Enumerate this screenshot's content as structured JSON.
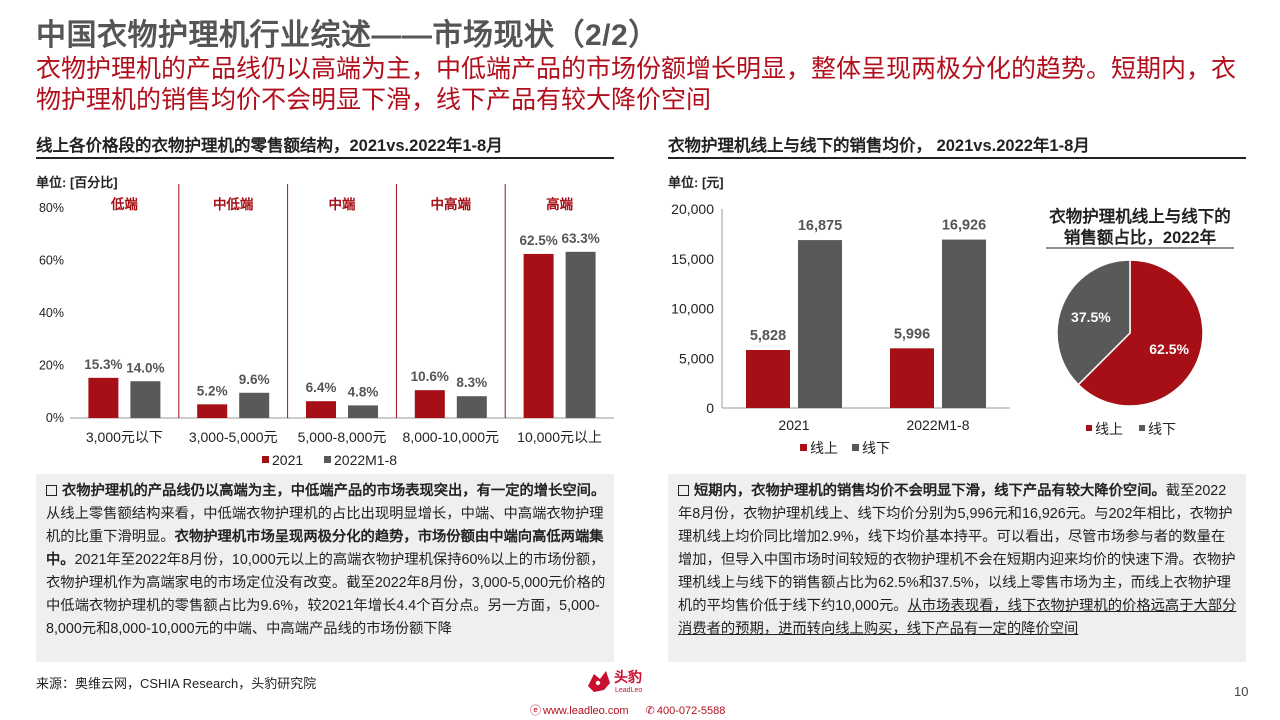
{
  "title": "中国衣物护理机行业综述——市场现状（2/2）",
  "subtitle": "衣物护理机的产品线仍以高端为主，中低端产品的市场份额增长明显，整体呈现两极分化的趋势。短期内，衣物护理机的销售均价不会明显下滑，线下产品有较大降价空间",
  "left_panel": {
    "title": "线上各价格段的衣物护理机的零售额结构，2021vs.2022年1-8月",
    "unit": "单位: [百分比]",
    "text_parts": [
      {
        "text": "衣物护理机的产品线仍以高端为主，中低端产品的市场表现突出，有一定的增长空间。",
        "bold": true
      },
      {
        "text": "从线上零售额结构来看，中低端衣物护理机的占比出现明显增长，中端、中高端衣物护理机的比重下滑明显。",
        "bold": false
      },
      {
        "text": "衣物护理机市场呈现两极分化的趋势，市场份额由中端向高低两端集中。",
        "bold": true
      },
      {
        "text": "2021年至2022年8月份，10,000元以上的高端衣物护理机保持60%以上的市场份额，衣物护理机作为高端家电的市场定位没有改变。截至2022年8月份，3,000-5,000元价格的中低端衣物护理机的零售额占比为9.6%，较2021年增长4.4个百分点。另一方面，5,000-8,000元和8,000-10,000元的中端、中高端产品线的市场份额下降",
        "bold": false
      }
    ]
  },
  "right_panel": {
    "title": "衣物护理机线上与线下的销售均价， 2021vs.2022年1-8月",
    "unit": "单位: [元]",
    "text_parts": [
      {
        "text": "短期内，衣物护理机的销售均价不会明显下滑，线下产品有较大降价空间。",
        "bold": true,
        "underline": false
      },
      {
        "text": "截至2022年8月份，衣物护理机线上、线下均价分别为5,996元和16,926元。与202年相比，衣物护理机线上均价同比增加2.9%，线下均价基本持平。可以看出，尽管市场参与者的数量在增加，但导入中国市场时间较短的衣物护理机不会在短期内迎来均价的快速下滑。衣物护理机线上与线下的销售额占比为62.5%和37.5%，以线上零售市场为主，而线上衣物护理机的平均售价低于线下约10,000元。",
        "bold": false,
        "underline": false
      },
      {
        "text": "从市场表现看，线下衣物护理机的价格远高于大部分消费者的预期，进而转向线上购买，线下产品有一定的降价空间",
        "bold": false,
        "underline": true
      }
    ]
  },
  "chart_data": [
    {
      "type": "bar",
      "ylabel": "",
      "ylim": [
        0,
        80
      ],
      "yticks": [
        "0%",
        "20%",
        "40%",
        "60%",
        "80%"
      ],
      "segments": [
        "低端",
        "中低端",
        "中端",
        "中高端",
        "高端"
      ],
      "categories": [
        "3,000元以下",
        "3,000-5,000元",
        "5,000-8,000元",
        "8,000-10,000元",
        "10,000元以上"
      ],
      "series": [
        {
          "name": "2021",
          "color": "#a50f15",
          "values": [
            15.3,
            5.2,
            6.4,
            10.6,
            62.5
          ],
          "labels": [
            "15.3%",
            "5.2%",
            "6.4%",
            "10.6%",
            "62.5%"
          ]
        },
        {
          "name": "2022M1-8",
          "color": "#595959",
          "values": [
            14.0,
            9.6,
            4.8,
            8.3,
            63.3
          ],
          "labels": [
            "14.0%",
            "9.6%",
            "4.8%",
            "8.3%",
            "63.3%"
          ]
        }
      ],
      "legend": "bottom"
    },
    {
      "type": "bar",
      "ylabel": "",
      "ylim": [
        0,
        20000
      ],
      "yticks": [
        "0",
        "5,000",
        "10,000",
        "15,000",
        "20,000"
      ],
      "categories": [
        "2021",
        "2022M1-8"
      ],
      "series": [
        {
          "name": "线上",
          "color": "#a50f15",
          "values": [
            5828,
            5996
          ],
          "labels": [
            "5,828",
            "5,996"
          ]
        },
        {
          "name": "线下",
          "color": "#595959",
          "values": [
            16875,
            16926
          ],
          "labels": [
            "16,875",
            "16,926"
          ]
        }
      ],
      "legend": "bottom"
    },
    {
      "type": "pie",
      "title": "衣物护理机线上与线下的销售额占比，2022年",
      "slices": [
        {
          "name": "线上",
          "value": 62.5,
          "label": "62.5%",
          "color": "#a50f15"
        },
        {
          "name": "线下",
          "value": 37.5,
          "label": "37.5%",
          "color": "#595959"
        }
      ],
      "legend": "bottom"
    }
  ],
  "footer": {
    "source": "来源：奥维云网，CSHIA Research，头豹研究院",
    "page_number": "10",
    "logo_text": "头豹",
    "logo_sub": "LeadLeo",
    "website": "www.leadleo.com",
    "phone": "400-072-5588"
  }
}
